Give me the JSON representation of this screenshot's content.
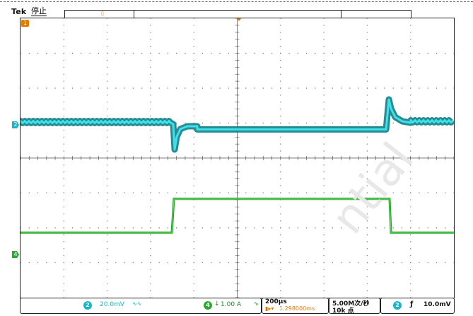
{
  "header": {
    "brand": "Tek",
    "run_state": "停止"
  },
  "channels": {
    "ch1": {
      "marker": "1",
      "color": "#e07a00"
    },
    "ch2": {
      "marker": "2",
      "color": "#18b5c4",
      "scale": "20.0mV",
      "coupling": "∿∿"
    },
    "ch4": {
      "marker": "4",
      "color": "#2fa82f",
      "scale": "1.00 A",
      "coupling": "∿",
      "probe_icon": "current-probe-icon"
    }
  },
  "timebase": {
    "scale": "200µs",
    "trigger_offset": "1.298000ms",
    "offset_icon": "trigger-offset-icon"
  },
  "acquisition": {
    "sample_rate": "5.00M次/秒",
    "record_length": "10k 点"
  },
  "trigger": {
    "source": "2",
    "slope_icon": "rising-edge-icon",
    "level": "10.0mV"
  },
  "watermark": "ntial"
}
